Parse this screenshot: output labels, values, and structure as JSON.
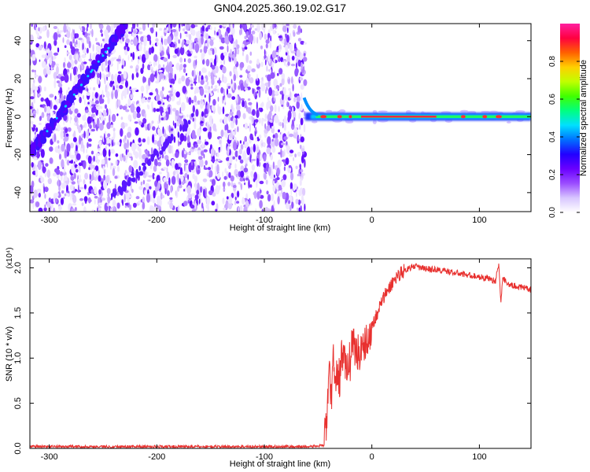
{
  "title": "GN04.2025.360.19.02.G17",
  "chart_data": [
    {
      "type": "heatmap",
      "xlabel": "Height of straight line (km)",
      "ylabel": "Frequency (Hz)",
      "xlim": [
        -318,
        148
      ],
      "ylim": [
        -50,
        49
      ],
      "x_ticks": [
        -300,
        -200,
        -100,
        0,
        100
      ],
      "y_ticks": [
        -40,
        -20,
        0,
        20,
        40
      ],
      "colorbar": {
        "label": "Normalized spectral amplitude",
        "range": [
          0,
          1
        ],
        "ticks": [
          "0.0",
          "0.2",
          "0.4",
          "0.6",
          "0.8"
        ],
        "colors": [
          "#ffffff",
          "#d8c6ff",
          "#9b4dff",
          "#6a00ff",
          "#2200ff",
          "#0070ff",
          "#00e0ff",
          "#00ff80",
          "#40ff00",
          "#c0ff00",
          "#ffd000",
          "#ff6000",
          "#ff0040",
          "#ff20a0"
        ]
      },
      "features": {
        "noise_region_x": [
          -318,
          -62
        ],
        "signal_region_x": [
          -62,
          148
        ],
        "signal_frequency": 0,
        "diagonal_ridge": {
          "x": [
            -318,
            -228
          ],
          "y": [
            -20,
            49
          ]
        }
      }
    },
    {
      "type": "line",
      "xlabel": "Height of straight line (km)",
      "ylabel": "SNR (10 * v/v)",
      "y_exponent": "(x10⁴)",
      "xlim": [
        -318,
        148
      ],
      "ylim": [
        0,
        2.1
      ],
      "x_ticks": [
        -300,
        -200,
        -100,
        0,
        100
      ],
      "y_ticks": [
        "0.0",
        "0.5",
        "1.0",
        "1.5",
        "2.0"
      ],
      "color": "#e8302e",
      "series": [
        {
          "x": [
            -318,
            -250,
            -150,
            -60,
            -45,
            -42,
            -40,
            -38,
            -36,
            -34,
            -32,
            -30,
            -28,
            -25,
            -22,
            -20,
            -18,
            -15,
            -12,
            -10,
            -8,
            -5,
            -2,
            0,
            5,
            10,
            15,
            20,
            25,
            30,
            35,
            40,
            45,
            50,
            60,
            70,
            80,
            90,
            100,
            110,
            115,
            118,
            120,
            122,
            125,
            130,
            135,
            140,
            148
          ],
          "y": [
            0.02,
            0.02,
            0.02,
            0.02,
            0.03,
            0.3,
            0.9,
            0.5,
            1.0,
            0.7,
            0.9,
            0.75,
            1.1,
            0.9,
            1.0,
            0.95,
            1.3,
            1.0,
            1.1,
            1.05,
            1.2,
            1.15,
            1.3,
            1.35,
            1.5,
            1.65,
            1.75,
            1.85,
            1.93,
            1.97,
            2.0,
            2.02,
            2.0,
            1.99,
            1.98,
            1.96,
            1.94,
            1.92,
            1.9,
            1.88,
            1.85,
            2.05,
            1.62,
            1.9,
            1.84,
            1.8,
            1.8,
            1.78,
            1.76
          ]
        }
      ]
    }
  ]
}
